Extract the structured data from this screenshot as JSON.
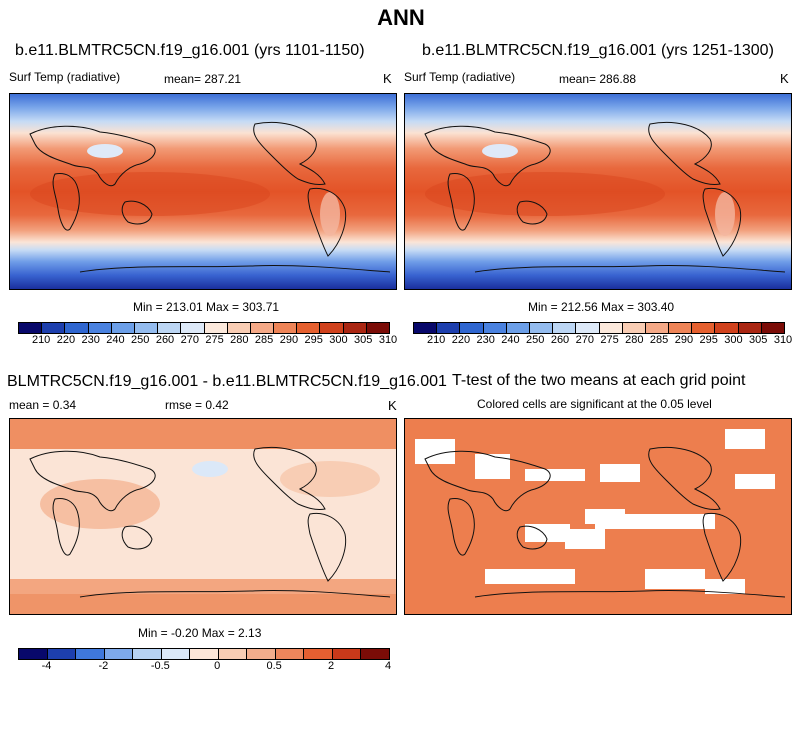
{
  "title": "ANN",
  "panels": {
    "top_left": {
      "title": "b.e11.BLMTRC5CN.f19_g16.001 (yrs 1101-1150)",
      "variable": "Surf Temp (radiative)",
      "mean": "mean= 287.21",
      "units": "K",
      "minmax": "Min = 213.01  Max = 303.71"
    },
    "top_right": {
      "title": "b.e11.BLMTRC5CN.f19_g16.001 (yrs 1251-1300)",
      "variable": "Surf Temp (radiative)",
      "mean": "mean= 286.88",
      "units": "K",
      "minmax": "Min = 212.56  Max = 303.40"
    },
    "bottom_left": {
      "title": "BLMTRC5CN.f19_g16.001 - b.e11.BLMTRC5CN.f19_g16.001",
      "mean": "mean =   0.34",
      "rmse": "rmse =   0.42",
      "units": "K",
      "minmax": "Min =  -0.20  Max =   2.13"
    },
    "bottom_right": {
      "title": "T-test of the two means at each grid point",
      "subtitle": "Colored cells are significant at the 0.05 level"
    }
  },
  "colorbars": {
    "abs": {
      "labels": [
        "210",
        "220",
        "230",
        "240",
        "250",
        "260",
        "270",
        "275",
        "280",
        "285",
        "290",
        "295",
        "300",
        "305",
        "310"
      ],
      "colors": [
        "#08086b",
        "#1d3fae",
        "#2f66d0",
        "#4a82e0",
        "#6c9fe8",
        "#94bcef",
        "#bcd6f4",
        "#dde9f8",
        "#fce9dc",
        "#f9cdb4",
        "#f5a987",
        "#ee8457",
        "#e5602f",
        "#d0411c",
        "#aa2612",
        "#7b0c07"
      ]
    },
    "diff": {
      "labels": [
        "-4",
        "-2",
        "-0.5",
        "0",
        "0.5",
        "2",
        "4"
      ],
      "colors": [
        "#08086b",
        "#1d3fae",
        "#3f78dc",
        "#7ea9ea",
        "#b7d2f3",
        "#dbe8f8",
        "#fce6d8",
        "#f8cdb4",
        "#f3ad8c",
        "#ed865c",
        "#e55f31",
        "#c9391a",
        "#7b0c07"
      ]
    }
  }
}
